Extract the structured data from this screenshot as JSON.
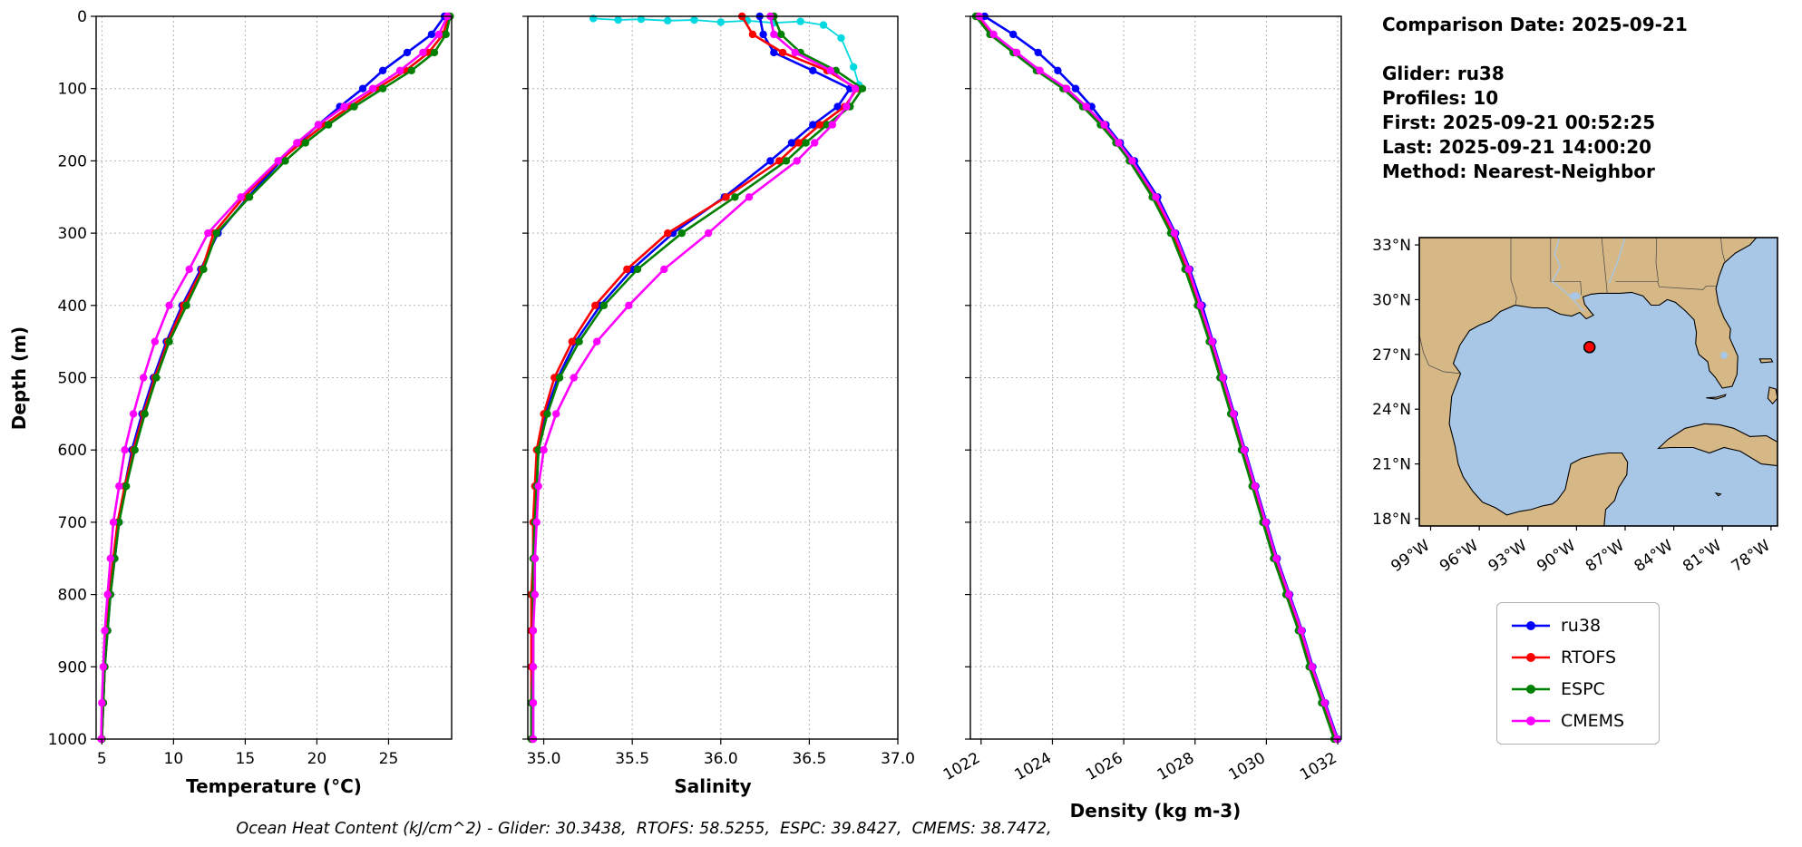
{
  "info": {
    "date_line": "Comparison Date: 2025-09-21",
    "glider_line": "Glider: ru38",
    "profiles_line": "Profiles: 10",
    "first_line": "First: 2025-09-21 00:52:25",
    "last_line": "Last: 2025-09-21 14:00:20",
    "method_line": "Method: Nearest-Neighbor"
  },
  "caption": "Ocean Heat Content (kJ/cm^2) - Glider: 30.3438,  RTOFS: 58.5255,  ESPC: 39.8427,  CMEMS: 38.7472,",
  "legend": {
    "entries": [
      {
        "label": "ru38",
        "color": "#0000ff"
      },
      {
        "label": "RTOFS",
        "color": "#ff0000"
      },
      {
        "label": "ESPC",
        "color": "#008000"
      },
      {
        "label": "CMEMS",
        "color": "#ff00ff"
      }
    ]
  },
  "chart_data": [
    {
      "type": "line",
      "xlabel": "Temperature (°C)",
      "ylabel": "Depth (m)",
      "xlim": [
        4.6,
        29.4
      ],
      "ylim": [
        1000,
        0
      ],
      "grid": true,
      "xticks": {
        "values": [
          5,
          10,
          15,
          20,
          25
        ],
        "labels": [
          "5",
          "10",
          "15",
          "20",
          "25"
        ]
      },
      "yticks": {
        "values": [
          0,
          100,
          200,
          300,
          400,
          500,
          600,
          700,
          800,
          900,
          1000
        ],
        "labels": [
          "0",
          "100",
          "200",
          "300",
          "400",
          "500",
          "600",
          "700",
          "800",
          "900",
          "1000"
        ]
      },
      "depths": [
        0,
        25,
        50,
        75,
        100,
        125,
        150,
        175,
        200,
        250,
        300,
        350,
        400,
        450,
        500,
        550,
        600,
        650,
        700,
        750,
        800,
        850,
        900,
        950,
        1000
      ],
      "series": [
        {
          "name": "ru38",
          "color": "#0000ff",
          "values": [
            28.9,
            28.0,
            26.3,
            24.6,
            23.2,
            21.6,
            20.1,
            18.7,
            17.5,
            15.2,
            13.1,
            11.9,
            10.6,
            9.5,
            8.6,
            7.8,
            7.1,
            6.6,
            6.2,
            5.9,
            5.6,
            5.4,
            5.2,
            5.1,
            5.0
          ]
        },
        {
          "name": "RTOFS",
          "color": "#ff0000",
          "values": [
            29.2,
            28.8,
            27.8,
            26.2,
            24.2,
            22.3,
            20.5,
            18.9,
            17.4,
            14.9,
            12.8,
            12.0,
            10.7,
            9.6,
            8.7,
            7.9,
            7.2,
            6.6,
            6.1,
            5.8,
            5.5,
            5.3,
            5.2,
            5.1,
            5.0
          ]
        },
        {
          "name": "ESPC",
          "color": "#008000",
          "values": [
            29.3,
            29.0,
            28.2,
            26.6,
            24.6,
            22.6,
            20.8,
            19.2,
            17.8,
            15.3,
            13.0,
            12.1,
            10.9,
            9.7,
            8.8,
            8.0,
            7.3,
            6.7,
            6.2,
            5.9,
            5.6,
            5.4,
            5.2,
            5.1,
            5.0
          ]
        },
        {
          "name": "CMEMS",
          "color": "#ff00ff",
          "values": [
            29.1,
            28.5,
            27.4,
            25.8,
            23.9,
            21.9,
            20.1,
            18.6,
            17.3,
            14.7,
            12.4,
            11.1,
            9.7,
            8.7,
            7.9,
            7.2,
            6.6,
            6.2,
            5.8,
            5.6,
            5.4,
            5.2,
            5.1,
            5.0,
            4.95
          ]
        }
      ]
    },
    {
      "type": "line",
      "xlabel": "Salinity",
      "ylabel": "",
      "xlim": [
        34.91,
        37.0
      ],
      "ylim": [
        1000,
        0
      ],
      "grid": true,
      "xticks": {
        "values": [
          35.0,
          35.5,
          36.0,
          36.5,
          37.0
        ],
        "labels": [
          "35.0",
          "35.5",
          "36.0",
          "36.5",
          "37.0"
        ]
      },
      "yticks": {
        "values": [
          0,
          100,
          200,
          300,
          400,
          500,
          600,
          700,
          800,
          900,
          1000
        ],
        "labels": [
          "0",
          "100",
          "200",
          "300",
          "400",
          "500",
          "600",
          "700",
          "800",
          "900",
          "1000"
        ]
      },
      "depths": [
        0,
        25,
        50,
        75,
        100,
        125,
        150,
        175,
        200,
        250,
        300,
        350,
        400,
        450,
        500,
        550,
        600,
        650,
        700,
        750,
        800,
        850,
        900,
        950,
        1000
      ],
      "series": [
        {
          "name": "glider-surface-raw",
          "color": "#00d9e0",
          "lw": 1.8,
          "depths": [
            3,
            5,
            4,
            6,
            5,
            8,
            6,
            9,
            7,
            12,
            30,
            70,
            95
          ],
          "values": [
            35.28,
            35.42,
            35.55,
            35.7,
            35.85,
            36.0,
            36.15,
            36.3,
            36.45,
            36.58,
            36.68,
            36.75,
            36.78
          ]
        },
        {
          "name": "ru38",
          "color": "#0000ff",
          "values": [
            36.22,
            36.24,
            36.3,
            36.52,
            36.73,
            36.66,
            36.52,
            36.4,
            36.28,
            36.02,
            35.73,
            35.5,
            35.32,
            35.18,
            35.08,
            35.01,
            34.97,
            34.96,
            34.95,
            34.95,
            34.94,
            34.94,
            34.94,
            34.94,
            34.94
          ]
        },
        {
          "name": "RTOFS",
          "color": "#ff0000",
          "values": [
            36.12,
            36.18,
            36.35,
            36.6,
            36.77,
            36.7,
            36.56,
            36.44,
            36.33,
            36.03,
            35.7,
            35.47,
            35.29,
            35.16,
            35.06,
            35.0,
            34.96,
            34.95,
            34.94,
            34.94,
            34.93,
            34.93,
            34.93,
            34.93,
            34.93
          ]
        },
        {
          "name": "ESPC",
          "color": "#008000",
          "values": [
            36.3,
            36.34,
            36.45,
            36.65,
            36.8,
            36.73,
            36.6,
            36.48,
            36.37,
            36.08,
            35.78,
            35.53,
            35.34,
            35.2,
            35.09,
            35.02,
            34.97,
            34.96,
            34.95,
            34.94,
            34.94,
            34.94,
            34.94,
            34.93,
            34.93
          ]
        },
        {
          "name": "CMEMS",
          "color": "#ff00ff",
          "values": [
            36.28,
            36.3,
            36.42,
            36.62,
            36.76,
            36.71,
            36.63,
            36.53,
            36.43,
            36.16,
            35.93,
            35.68,
            35.48,
            35.3,
            35.17,
            35.07,
            35.0,
            34.97,
            34.96,
            34.95,
            34.95,
            34.94,
            34.94,
            34.94,
            34.94
          ]
        }
      ]
    },
    {
      "type": "line",
      "xlabel": "Density (kg m-3)",
      "ylabel": "",
      "xlim": [
        1021.7,
        1032.1
      ],
      "ylim": [
        1000,
        0
      ],
      "grid": true,
      "xticks": {
        "values": [
          1022,
          1024,
          1026,
          1028,
          1030,
          1032
        ],
        "labels": [
          "1022",
          "1024",
          "1026",
          "1028",
          "1030",
          "1032"
        ]
      },
      "yticks": {
        "values": [
          0,
          100,
          200,
          300,
          400,
          500,
          600,
          700,
          800,
          900,
          1000
        ],
        "labels": [
          "0",
          "100",
          "200",
          "300",
          "400",
          "500",
          "600",
          "700",
          "800",
          "900",
          "1000"
        ]
      },
      "depths": [
        0,
        25,
        50,
        75,
        100,
        125,
        150,
        175,
        200,
        250,
        300,
        350,
        400,
        450,
        500,
        550,
        600,
        650,
        700,
        750,
        800,
        850,
        900,
        950,
        1000
      ],
      "series": [
        {
          "name": "ru38",
          "color": "#0000ff",
          "values": [
            1022.1,
            1022.9,
            1023.6,
            1024.15,
            1024.65,
            1025.1,
            1025.5,
            1025.9,
            1026.3,
            1026.95,
            1027.45,
            1027.85,
            1028.2,
            1028.5,
            1028.8,
            1029.1,
            1029.4,
            1029.7,
            1030.0,
            1030.3,
            1030.65,
            1031.0,
            1031.3,
            1031.65,
            1032.0
          ]
        },
        {
          "name": "RTOFS",
          "color": "#ff0000",
          "values": [
            1021.9,
            1022.3,
            1022.95,
            1023.6,
            1024.35,
            1024.9,
            1025.4,
            1025.82,
            1026.2,
            1026.85,
            1027.37,
            1027.77,
            1028.12,
            1028.45,
            1028.75,
            1029.05,
            1029.35,
            1029.65,
            1029.95,
            1030.25,
            1030.6,
            1030.95,
            1031.25,
            1031.6,
            1031.95
          ]
        },
        {
          "name": "ESPC",
          "color": "#008000",
          "values": [
            1021.85,
            1022.25,
            1022.9,
            1023.55,
            1024.3,
            1024.85,
            1025.35,
            1025.78,
            1026.16,
            1026.8,
            1027.32,
            1027.72,
            1028.07,
            1028.4,
            1028.7,
            1029.0,
            1029.3,
            1029.6,
            1029.9,
            1030.2,
            1030.55,
            1030.9,
            1031.2,
            1031.55,
            1031.9
          ]
        },
        {
          "name": "CMEMS",
          "color": "#ff00ff",
          "values": [
            1021.95,
            1022.35,
            1023.0,
            1023.65,
            1024.4,
            1024.95,
            1025.45,
            1025.86,
            1026.24,
            1026.9,
            1027.42,
            1027.82,
            1028.15,
            1028.48,
            1028.78,
            1029.08,
            1029.38,
            1029.68,
            1029.98,
            1030.28,
            1030.63,
            1030.98,
            1031.28,
            1031.63,
            1031.98
          ]
        }
      ]
    }
  ],
  "map": {
    "extent": {
      "lon_min": -99.7,
      "lon_max": -77.6,
      "lat_min": 17.6,
      "lat_max": 33.4
    },
    "lon_ticks": [
      -99,
      -96,
      -93,
      -90,
      -87,
      -84,
      -81,
      -78
    ],
    "lon_tick_labels": [
      "99°W",
      "96°W",
      "93°W",
      "90°W",
      "87°W",
      "84°W",
      "81°W",
      "78°W"
    ],
    "lat_ticks": [
      33,
      30,
      27,
      24,
      21,
      18
    ],
    "lat_tick_labels": [
      "33°N",
      "30°N",
      "27°N",
      "24°N",
      "21°N",
      "18°N"
    ],
    "marker": {
      "lon": -89.2,
      "lat": 27.4,
      "color": "#ff0000"
    },
    "land_color": "#d6b886",
    "water_color": "#a8c6e6"
  }
}
